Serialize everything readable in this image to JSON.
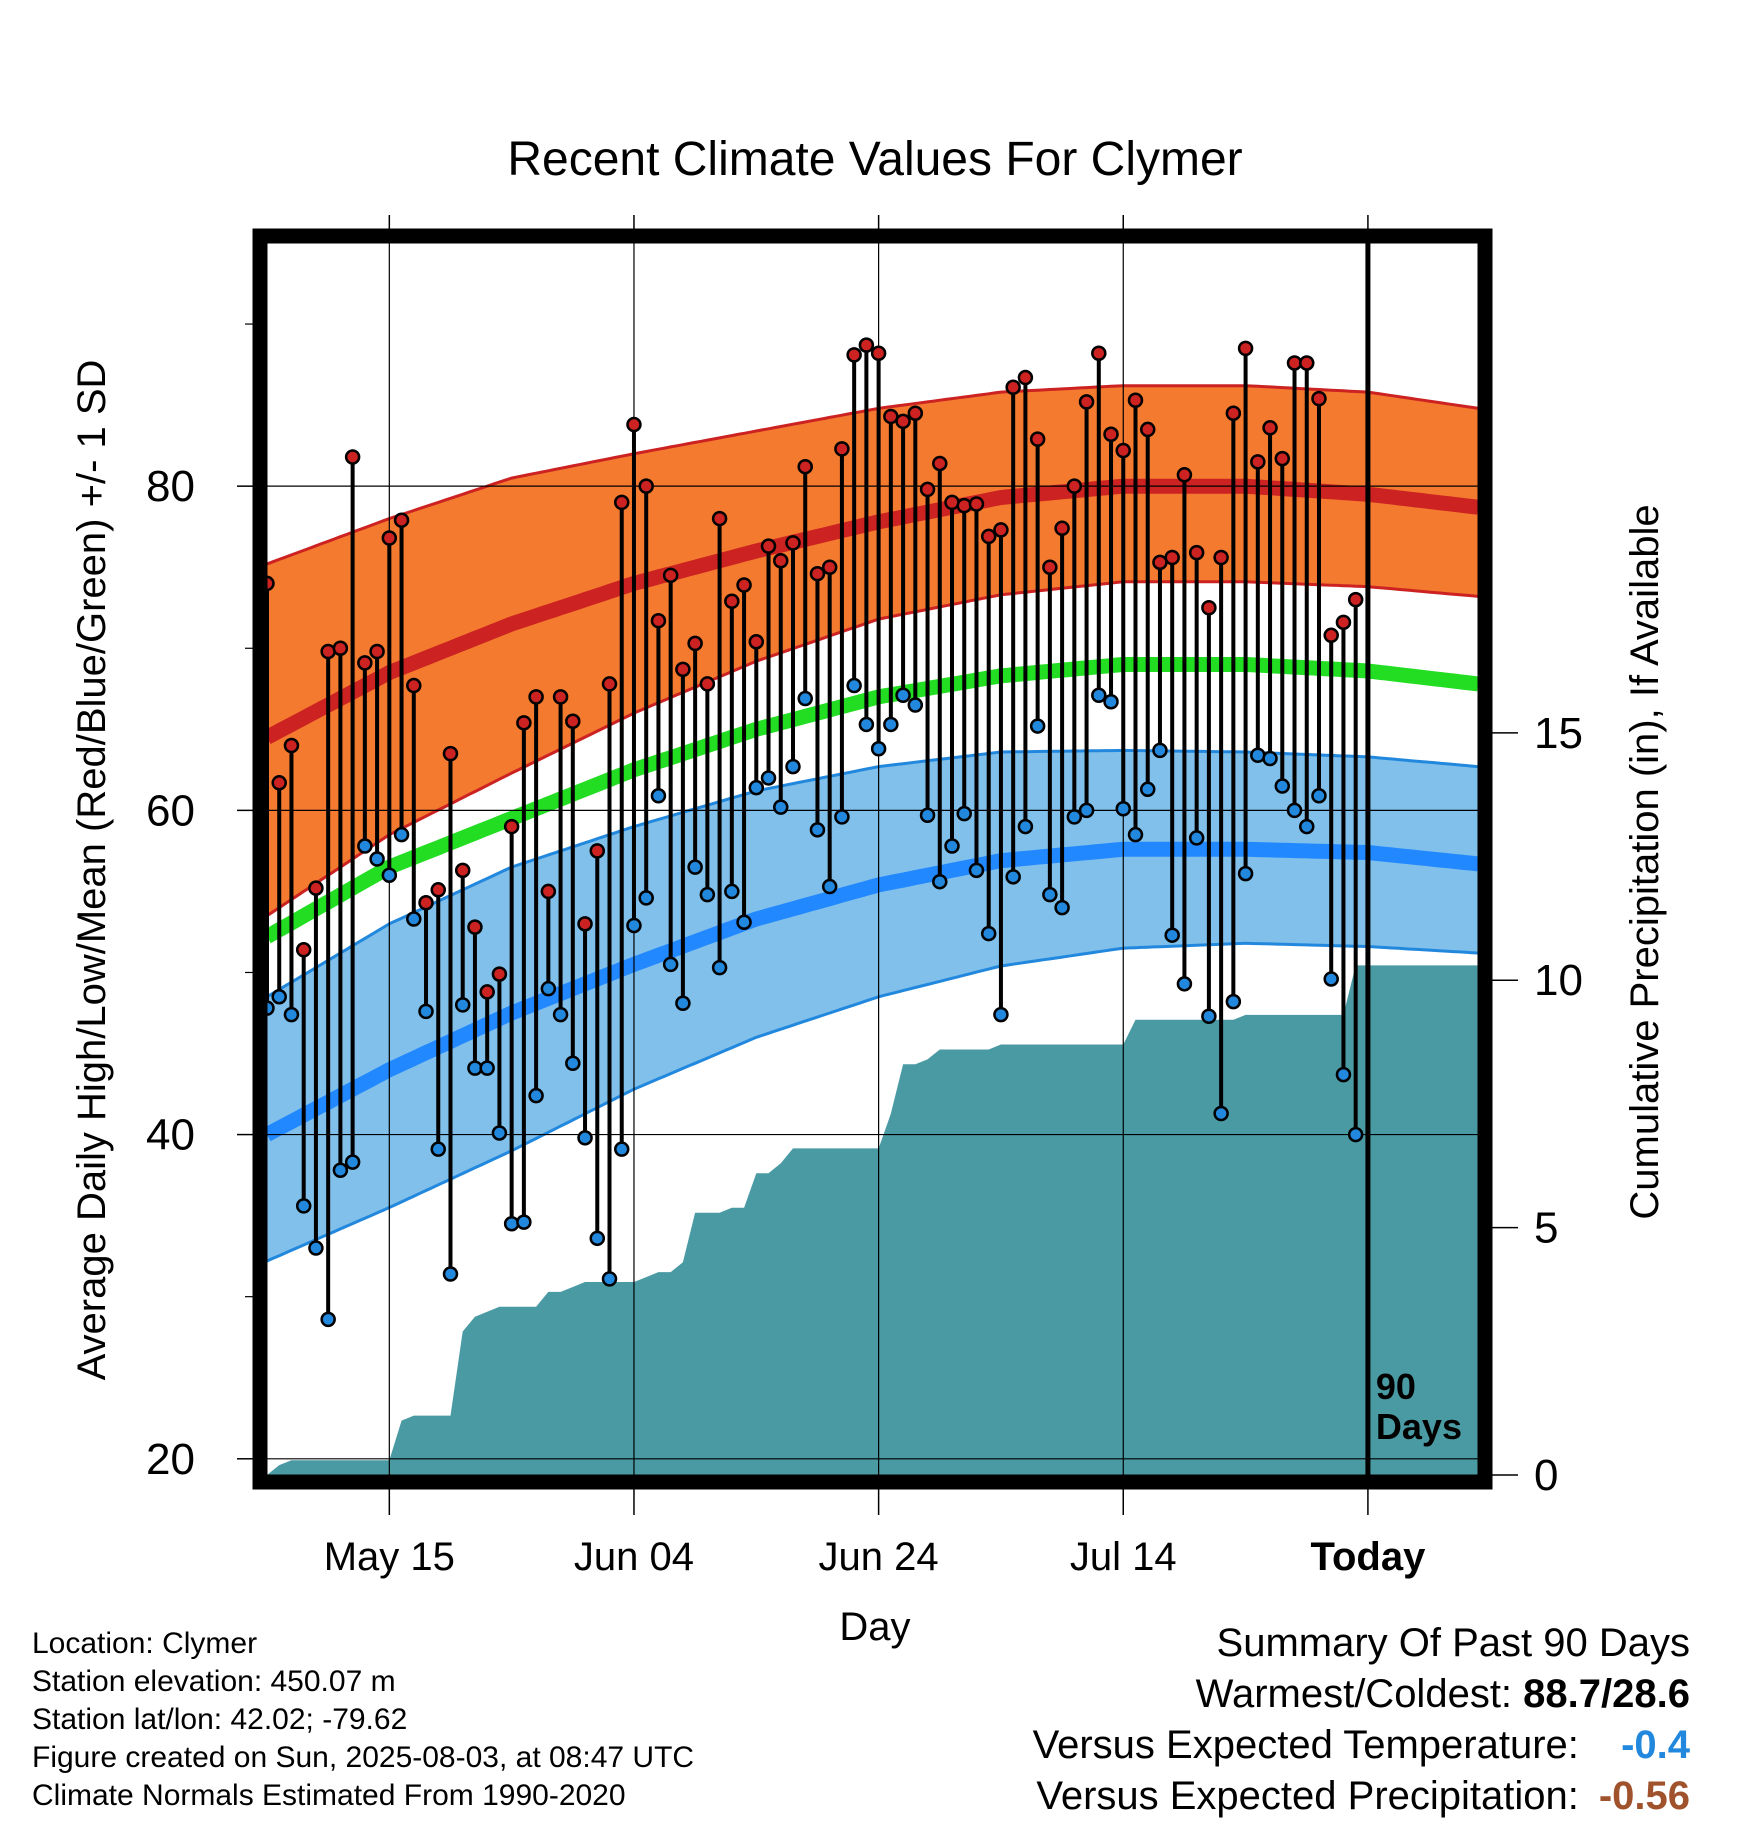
{
  "chart_data": {
    "type": "line",
    "title": "Recent Climate Values For Clymer",
    "xlabel": "Day",
    "ylabel_left": "Average Daily High/Low/Mean (Red/Blue/Green) +/- 1 SD",
    "ylabel_right": "Cumulative Precipitation (in), If Available",
    "x_tick_labels": [
      "May 15",
      "Jun 04",
      "Jun 24",
      "Jul 14",
      "Today"
    ],
    "x_tick_days": [
      10,
      30,
      50,
      70,
      90
    ],
    "x_range_days": [
      0,
      99
    ],
    "y_left_ticks": [
      20,
      40,
      60,
      80
    ],
    "y_left_range": [
      19,
      95
    ],
    "y_right_ticks": [
      0,
      5,
      10,
      15
    ],
    "y_right_range": [
      0,
      24.9
    ],
    "today_marker": {
      "day": 90,
      "label_line1": "90",
      "label_line2": "Days"
    },
    "normals": {
      "days": [
        0,
        10,
        20,
        30,
        40,
        50,
        60,
        70,
        80,
        90,
        99
      ],
      "high_mean": [
        64.5,
        68.5,
        71.5,
        74.0,
        76.0,
        77.8,
        79.3,
        80.0,
        80.0,
        79.5,
        78.7
      ],
      "high_upper": [
        75.2,
        78.0,
        80.5,
        82.0,
        83.4,
        84.8,
        85.8,
        86.2,
        86.2,
        85.8,
        84.8
      ],
      "high_lower": [
        53.5,
        58.5,
        62.3,
        66.0,
        69.2,
        71.8,
        73.3,
        74.1,
        74.1,
        73.8,
        73.2
      ],
      "avg_mean": [
        52.2,
        56.5,
        59.5,
        62.5,
        65.0,
        67.0,
        68.3,
        69.0,
        69.0,
        68.6,
        67.8
      ],
      "low_mean": [
        40.0,
        44.0,
        47.5,
        50.5,
        53.3,
        55.4,
        56.9,
        57.6,
        57.6,
        57.4,
        56.7
      ],
      "low_upper": [
        48.5,
        53.0,
        56.5,
        59.0,
        61.2,
        62.7,
        63.6,
        63.7,
        63.6,
        63.3,
        62.7
      ],
      "low_lower": [
        32.2,
        35.5,
        39.0,
        42.8,
        46.0,
        48.5,
        50.4,
        51.5,
        51.8,
        51.6,
        51.2
      ]
    },
    "series": [
      {
        "name": "High",
        "color": "#cc2222",
        "values": [
          74,
          61.7,
          64,
          51.4,
          55.2,
          69.8,
          70,
          81.8,
          69.1,
          69.8,
          76.8,
          77.9,
          67.7,
          54.3,
          55.1,
          63.5,
          56.3,
          52.8,
          48.8,
          49.9,
          59,
          65.4,
          67,
          55,
          67,
          65.5,
          53,
          57.5,
          67.8,
          79,
          83.8,
          80,
          71.7,
          74.5,
          68.7,
          70.3,
          67.8,
          78,
          72.9,
          73.9,
          70.4,
          76.3,
          75.4,
          76.5,
          81.2,
          74.6,
          75,
          82.3,
          88.1,
          88.7,
          88.2,
          84.3,
          84,
          84.5,
          79.8,
          81.4,
          79,
          78.8,
          78.9,
          76.9,
          77.3,
          86.1,
          86.7,
          82.9,
          75,
          77.4,
          80,
          85.2,
          88.2,
          83.2,
          82.2,
          85.3,
          83.5,
          75.3,
          75.6,
          80.7,
          75.9,
          72.5,
          75.6,
          84.5,
          88.5,
          81.5,
          83.6,
          81.7,
          87.6,
          87.6,
          85.4,
          70.8,
          71.6,
          73
        ]
      },
      {
        "name": "Low",
        "color": "#2288dd",
        "values": [
          47.8,
          48.5,
          47.4,
          35.6,
          33,
          28.6,
          37.8,
          38.3,
          57.8,
          57,
          56,
          58.5,
          53.3,
          47.6,
          39.1,
          31.4,
          48,
          44.1,
          44.1,
          40.1,
          34.5,
          34.6,
          42.4,
          49,
          47.4,
          44.4,
          39.8,
          33.6,
          31.1,
          39.1,
          52.9,
          54.6,
          60.9,
          50.5,
          48.1,
          56.5,
          54.8,
          50.3,
          55,
          53.1,
          61.4,
          62,
          60.2,
          62.7,
          66.9,
          58.8,
          55.3,
          59.6,
          67.7,
          65.3,
          63.8,
          65.3,
          67.1,
          66.5,
          59.7,
          55.6,
          57.8,
          59.8,
          56.3,
          52.4,
          47.4,
          55.9,
          59,
          65.2,
          54.8,
          54,
          59.6,
          60,
          67.1,
          66.7,
          60.1,
          58.5,
          61.3,
          63.7,
          52.3,
          49.3,
          58.3,
          47.3,
          41.3,
          48.2,
          56.1,
          63.4,
          63.2,
          61.5,
          60,
          59,
          60.9,
          49.6,
          43.7,
          40
        ]
      }
    ],
    "precip_cumulative": {
      "days": [
        0,
        1,
        2,
        3,
        4,
        5,
        6,
        7,
        8,
        9,
        10,
        11,
        12,
        13,
        14,
        15,
        16,
        17,
        18,
        19,
        20,
        21,
        22,
        23,
        24,
        25,
        26,
        27,
        28,
        29,
        30,
        31,
        32,
        33,
        34,
        35,
        36,
        37,
        38,
        39,
        40,
        41,
        42,
        43,
        44,
        45,
        46,
        47,
        48,
        49,
        50,
        51,
        52,
        53,
        54,
        55,
        56,
        57,
        58,
        59,
        60,
        61,
        62,
        63,
        64,
        65,
        66,
        67,
        68,
        69,
        70,
        71,
        72,
        73,
        74,
        75,
        76,
        77,
        78,
        79,
        80,
        81,
        82,
        83,
        84,
        85,
        86,
        87,
        88,
        89,
        90,
        99
      ],
      "values": [
        0,
        0.2,
        0.3,
        0.3,
        0.3,
        0.3,
        0.3,
        0.3,
        0.3,
        0.3,
        0.3,
        1.1,
        1.2,
        1.2,
        1.2,
        1.2,
        2.9,
        3.2,
        3.3,
        3.4,
        3.4,
        3.4,
        3.4,
        3.7,
        3.7,
        3.8,
        3.9,
        3.9,
        3.9,
        3.9,
        3.9,
        4,
        4.1,
        4.1,
        4.3,
        5.3,
        5.3,
        5.3,
        5.4,
        5.4,
        6.1,
        6.1,
        6.3,
        6.6,
        6.6,
        6.6,
        6.6,
        6.6,
        6.6,
        6.6,
        6.6,
        7.3,
        8.3,
        8.3,
        8.4,
        8.6,
        8.6,
        8.6,
        8.6,
        8.6,
        8.7,
        8.7,
        8.7,
        8.7,
        8.7,
        8.7,
        8.7,
        8.7,
        8.7,
        8.7,
        8.7,
        9.2,
        9.2,
        9.2,
        9.2,
        9.2,
        9.2,
        9.2,
        9.2,
        9.2,
        9.3,
        9.3,
        9.3,
        9.3,
        9.3,
        9.3,
        9.3,
        9.3,
        9.3,
        10.3,
        10.3,
        10.3
      ]
    },
    "colors": {
      "high_band": "#f37a2e",
      "high_band_edge": "#cc2222",
      "high_mean_line": "#cc2222",
      "avg_line": "#22dd22",
      "low_band": "#80c0ea",
      "low_band_edge": "#2288dd",
      "low_mean_line": "#2288ff",
      "precip_fill": "#4a9aa4",
      "high_point": "#cc2222",
      "low_point": "#2288dd"
    }
  },
  "info": {
    "location": "Location: Clymer",
    "elevation": "Station elevation: 450.07 m",
    "latlon": "Station lat/lon: 42.02; -79.62",
    "created": "Figure created on Sun, 2025-08-03, at 08:47 UTC",
    "normals": "Climate Normals Estimated From 1990-2020"
  },
  "summary": {
    "title": "Summary Of Past 90 Days",
    "warm_cold_label": "Warmest/Coldest:",
    "warm_cold_value": "88.7/28.6",
    "temp_label": "Versus Expected Temperature:",
    "temp_value": "-0.4",
    "temp_value_color": "#2288dd",
    "precip_label": "Versus Expected Precipitation:",
    "precip_value": "-0.56",
    "precip_value_color": "#a0522d"
  }
}
